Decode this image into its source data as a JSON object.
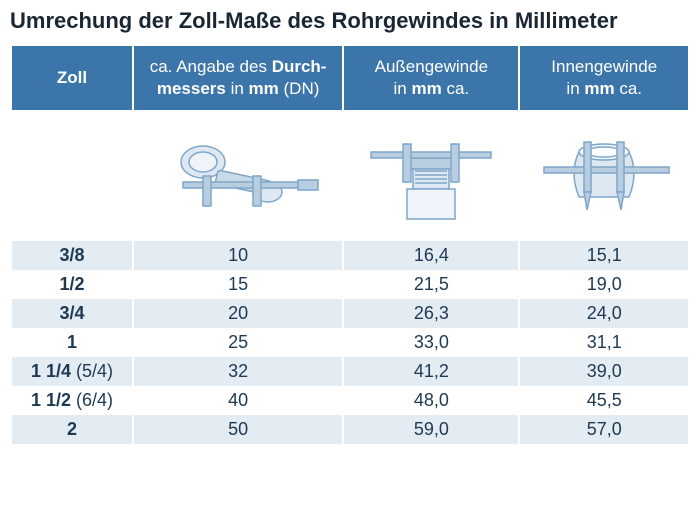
{
  "title": "Umrechung der Zoll-Maße des Rohrgewindes in Millimeter",
  "headers": {
    "zoll": "Zoll",
    "dn_pre": "ca. Angabe des ",
    "dn_b": "Durch-\nmessers",
    "dn_post": " in ",
    "dn_b2": "mm",
    "dn_post2": " (DN)",
    "aus_pre": "Außengewinde\nin ",
    "aus_b": "mm",
    "aus_post": " ca.",
    "innen_pre": "Innengewinde\nin ",
    "innen_b": "mm",
    "innen_post": " ca."
  },
  "rows": [
    {
      "zoll": "3/8",
      "alt": "",
      "dn": "10",
      "aus": "16,4",
      "innen": "15,1"
    },
    {
      "zoll": "1/2",
      "alt": "",
      "dn": "15",
      "aus": "21,5",
      "innen": "19,0"
    },
    {
      "zoll": "3/4",
      "alt": "",
      "dn": "20",
      "aus": "26,3",
      "innen": "24,0"
    },
    {
      "zoll": "1",
      "alt": "",
      "dn": "25",
      "aus": "33,0",
      "innen": "31,1"
    },
    {
      "zoll": "1 1/4",
      "alt": " (5/4)",
      "dn": "32",
      "aus": "41,2",
      "innen": "39,0"
    },
    {
      "zoll": "1 1/2",
      "alt": " (6/4)",
      "dn": "40",
      "aus": "48,0",
      "innen": "45,5"
    },
    {
      "zoll": "2",
      "alt": "",
      "dn": "50",
      "aus": "59,0",
      "innen": "57,0"
    }
  ],
  "style": {
    "header_bg": "#3b75a9",
    "header_fg": "#ffffff",
    "row_even_bg": "#e3ebf3",
    "row_odd_bg": "#ffffff",
    "text_color": "#1e3a52",
    "title_color": "#1a2633",
    "illustration_stroke": "#7fa6c9",
    "illustration_fill": "#c8d9e8",
    "title_fontsize": 22,
    "header_fontsize": 17,
    "cell_fontsize": 18
  }
}
